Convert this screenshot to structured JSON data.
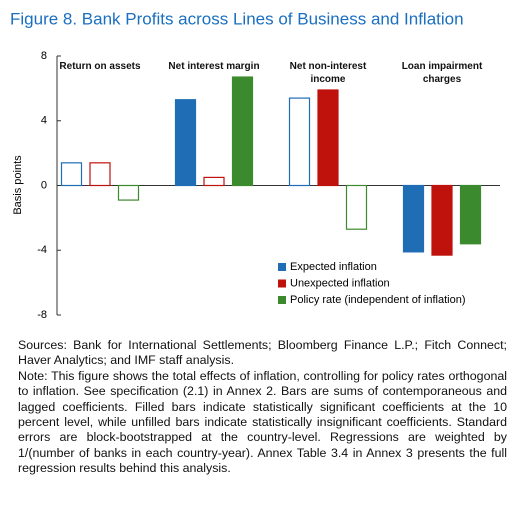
{
  "chart_data": {
    "type": "bar",
    "title": "Figure 8. Bank Profits across Lines of Business and Inflation",
    "ylabel": "Basis points",
    "categories": [
      "Return on assets",
      "Net interest margin",
      "Net non-interest income",
      "Loan impairment charges"
    ],
    "series": [
      {
        "name": "Expected inflation",
        "color": "#1f6db5",
        "values": [
          1.4,
          5.3,
          5.4,
          -4.1
        ],
        "filled": [
          false,
          true,
          false,
          true
        ]
      },
      {
        "name": "Unexpected inflation",
        "color": "#c0120c",
        "values": [
          1.4,
          0.5,
          5.9,
          -4.3
        ],
        "filled": [
          false,
          false,
          true,
          true
        ]
      },
      {
        "name": "Policy rate (independent of inflation)",
        "color": "#3c8a2e",
        "values": [
          -0.9,
          6.7,
          -2.7,
          -3.6
        ],
        "filled": [
          false,
          true,
          false,
          true
        ]
      }
    ],
    "ylim": [
      -8,
      8
    ],
    "yticks": [
      -8,
      -4,
      0,
      4,
      8
    ],
    "grid": false,
    "legend": "lower right",
    "notes": [
      "Sources: Bank for International Settlements; Bloomberg Finance L.P.; Fitch Connect; Haver Analytics; and IMF staff analysis.",
      "Note: This figure shows the total effects of inflation, controlling for policy rates orthogonal to inflation. See specification (2.1) in Annex 2. Bars are sums of contemporaneous and lagged coefficients. Filled bars indicate statistically significant coefficients at the 10 percent level, while unfilled bars indicate statistically insignificant coefficients. Standard errors are block-bootstrapped at the country-level. Regressions are weighted by 1/(number of banks in each country-year). Annex Table 3.4 in Annex 3 presents the full regression results behind this analysis."
    ]
  }
}
